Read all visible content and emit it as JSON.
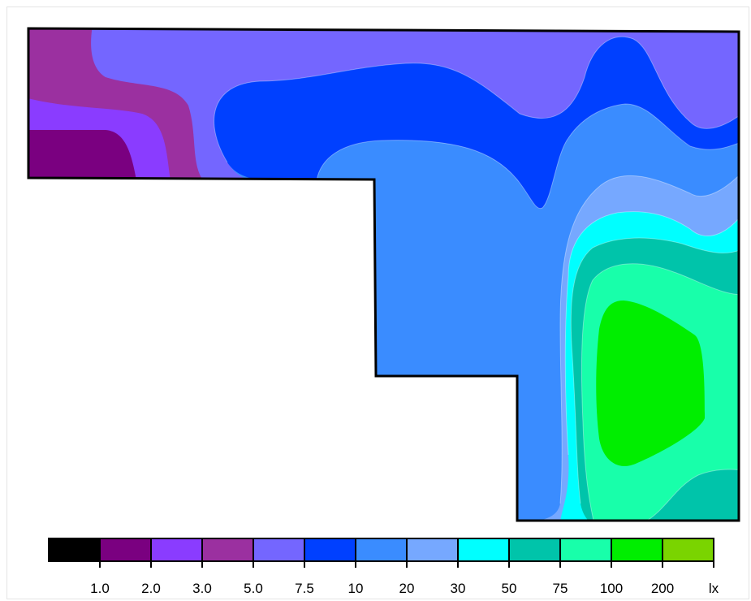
{
  "chart_data": {
    "type": "heatmap",
    "subtype": "isolux-contour",
    "unit": "lx",
    "legend": {
      "placement": "bottom",
      "levels": [
        {
          "label": "",
          "color": "#000000"
        },
        {
          "label": "1.0",
          "color": "#7a0080"
        },
        {
          "label": "2.0",
          "color": "#8a3cff"
        },
        {
          "label": "3.0",
          "color": "#9b30a0"
        },
        {
          "label": "5.0",
          "color": "#7466ff"
        },
        {
          "label": "7.5",
          "color": "#0040ff"
        },
        {
          "label": "10",
          "color": "#3a8cff"
        },
        {
          "label": "20",
          "color": "#76a8ff"
        },
        {
          "label": "30",
          "color": "#00ffff"
        },
        {
          "label": "50",
          "color": "#00c4aa"
        },
        {
          "label": "75",
          "color": "#18ffaa"
        },
        {
          "label": "100",
          "color": "#00ee00"
        },
        {
          "label": "200",
          "color": "#7ad400"
        }
      ],
      "unit_label": "lx"
    },
    "colors": {
      "outline": "#000000",
      "frame": "#e4e4e4"
    }
  }
}
